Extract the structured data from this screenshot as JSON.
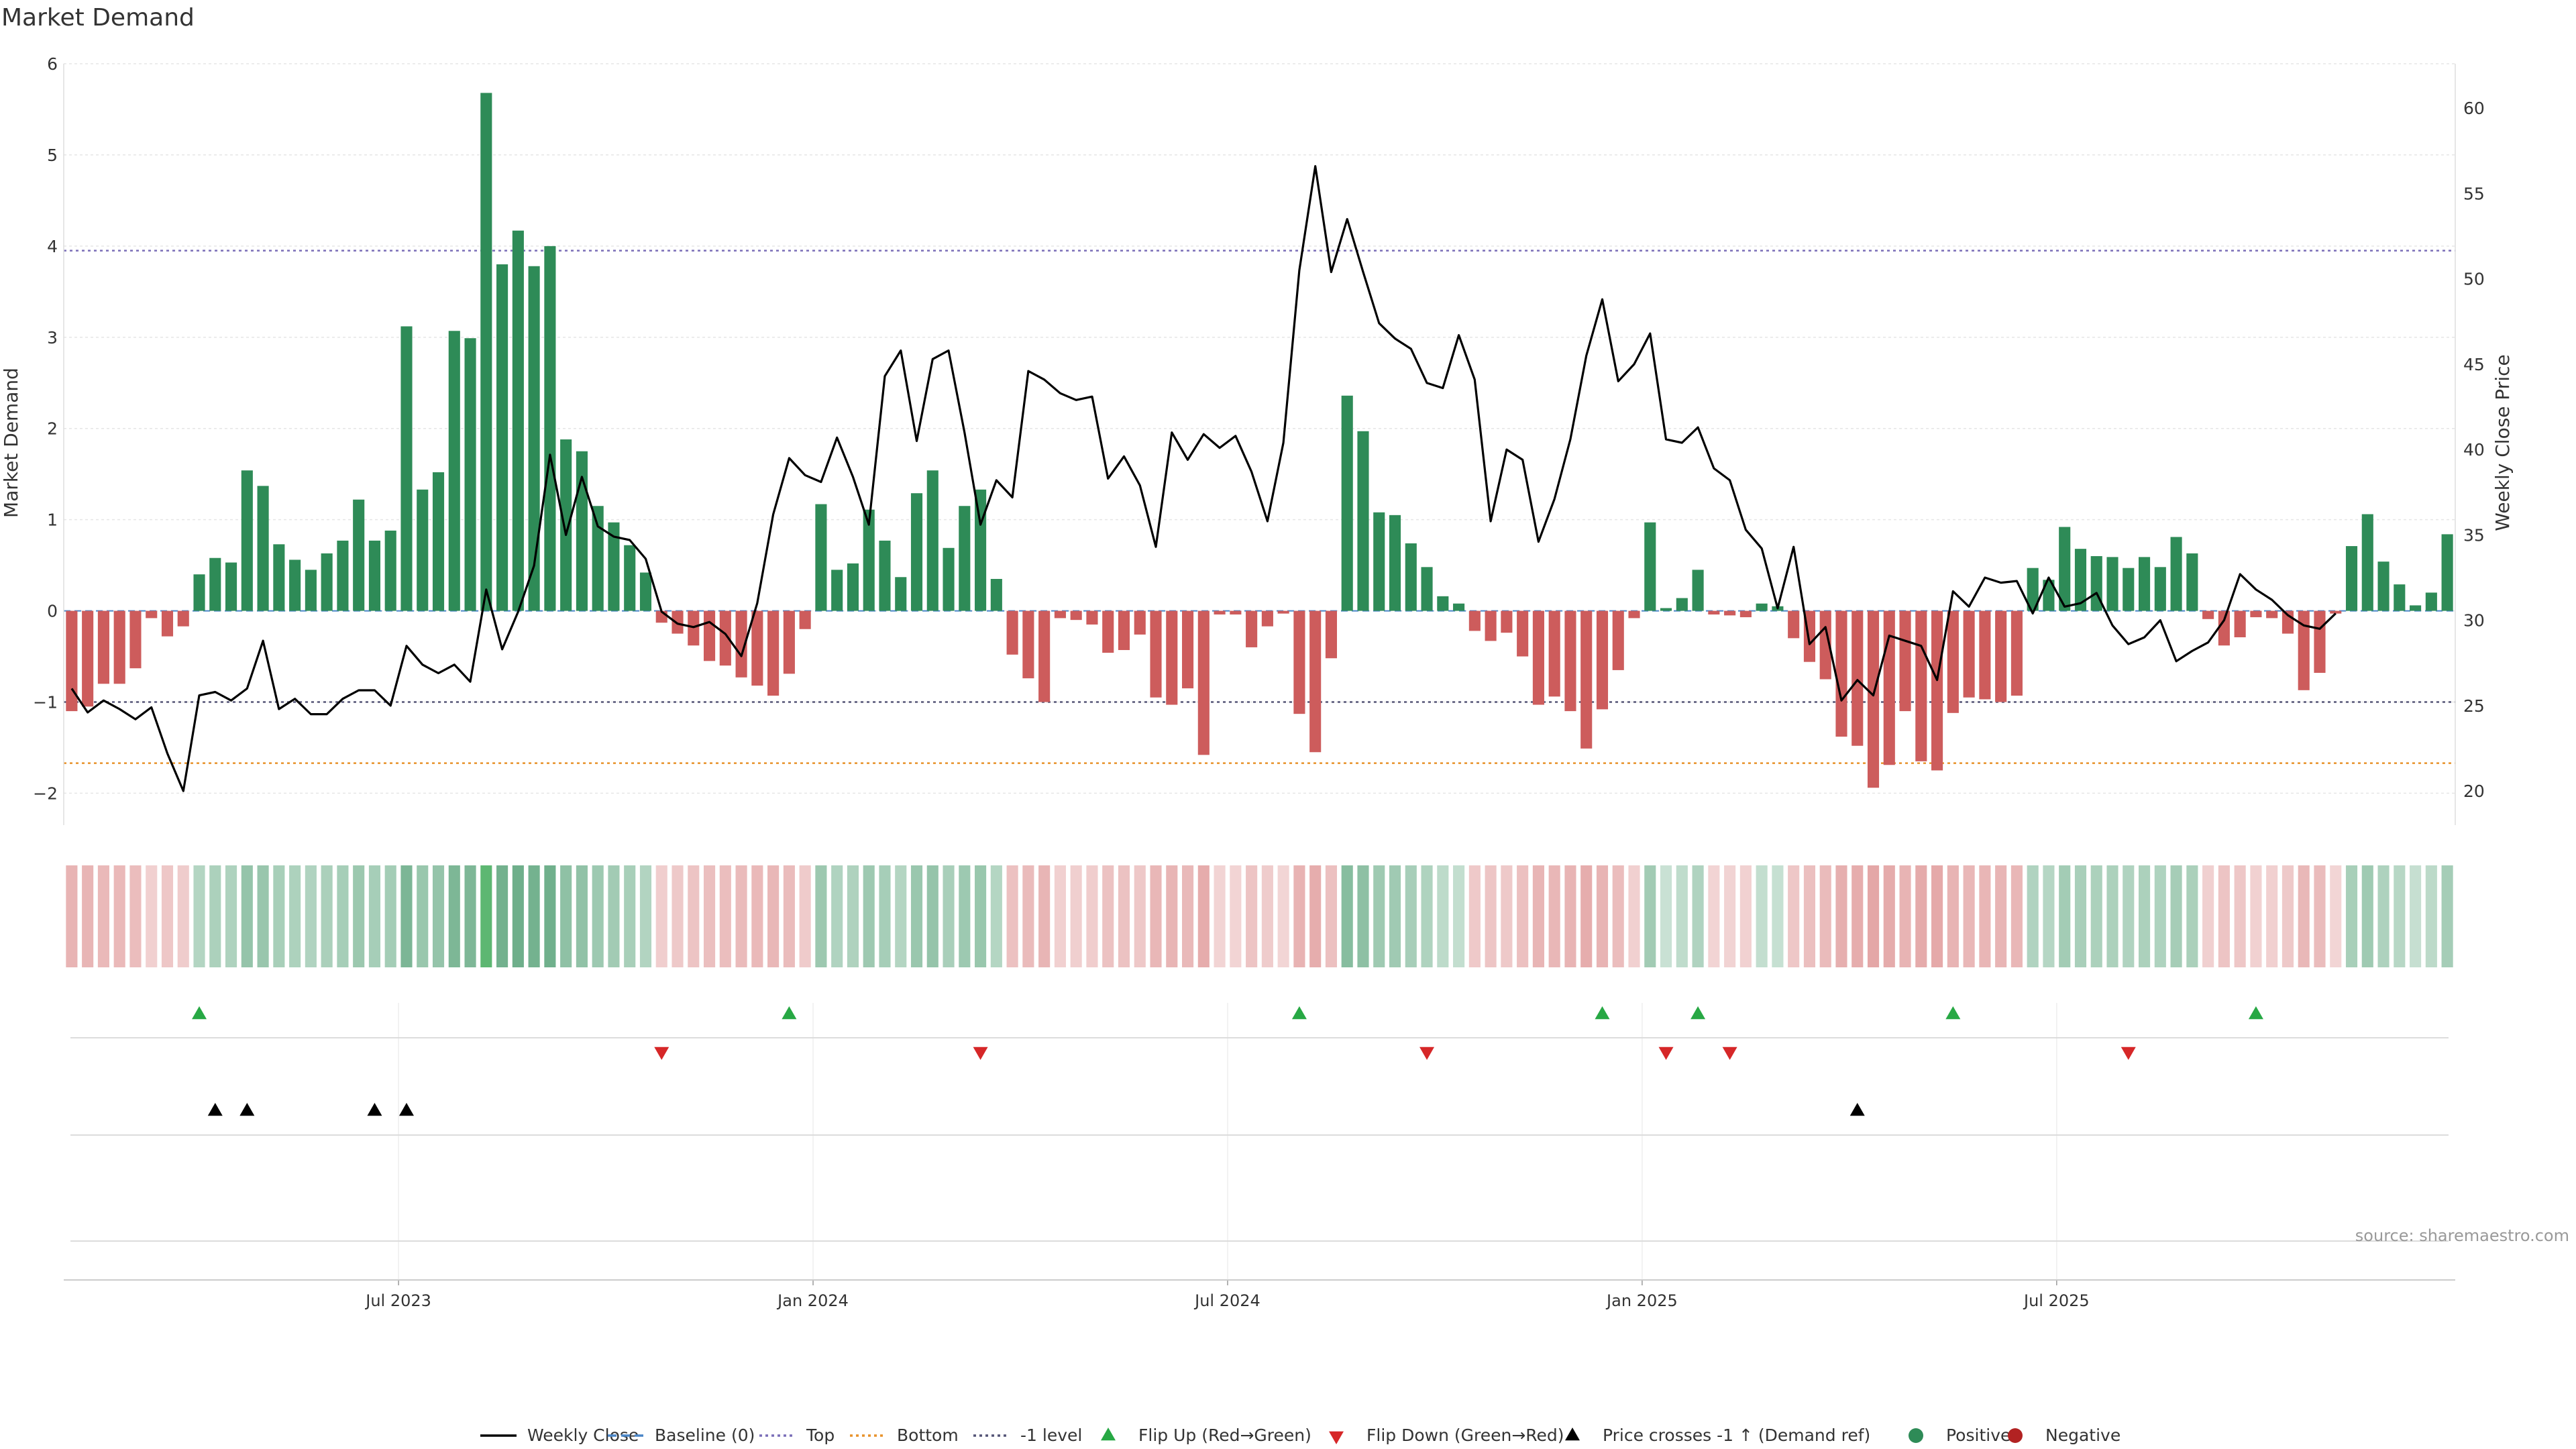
{
  "chart_data": {
    "type": "bar",
    "title": "Market Demand",
    "ylabel": "Market Demand",
    "y2label": "Weekly Close Price",
    "ylim": [
      -2.35,
      6.0
    ],
    "y2lim": [
      18.0,
      62.6
    ],
    "y_ticks": [
      6,
      5,
      4,
      3,
      2,
      1,
      0,
      -1,
      -2
    ],
    "y2_ticks": [
      60,
      55,
      50,
      45,
      40,
      35,
      30,
      25,
      20
    ],
    "x_ticks": [
      "Jul 2023",
      "Jan 2024",
      "Jul 2024",
      "Jan 2025",
      "Jul 2025"
    ],
    "x_tick_week_index": [
      21,
      47,
      73,
      99,
      125
    ],
    "reference_lines": [
      {
        "name": "Top",
        "value": 3.95,
        "color": "#7b6fb8"
      },
      {
        "name": "Bottom",
        "value": -1.67,
        "color": "#e8922b"
      },
      {
        "name": "-1 level",
        "value": -1.0,
        "color": "#555577"
      }
    ],
    "demand": [
      -1.1,
      -1.05,
      -0.8,
      -0.8,
      -0.63,
      -0.08,
      -0.28,
      -0.17,
      0.4,
      0.58,
      0.53,
      1.54,
      1.37,
      0.73,
      0.56,
      0.45,
      0.63,
      0.77,
      1.22,
      0.77,
      0.88,
      3.12,
      1.33,
      1.52,
      3.07,
      2.99,
      5.68,
      3.8,
      4.17,
      3.78,
      4.0,
      1.88,
      1.75,
      1.15,
      0.97,
      0.72,
      0.42,
      -0.13,
      -0.25,
      -0.38,
      -0.55,
      -0.6,
      -0.73,
      -0.82,
      -0.93,
      -0.69,
      -0.2,
      1.17,
      0.45,
      0.52,
      1.11,
      0.77,
      0.37,
      1.29,
      1.54,
      0.69,
      1.15,
      1.33,
      0.35,
      -0.48,
      -0.74,
      -1.0,
      -0.08,
      -0.1,
      -0.15,
      -0.46,
      -0.43,
      -0.26,
      -0.95,
      -1.03,
      -0.85,
      -1.58,
      -0.04,
      -0.04,
      -0.4,
      -0.17,
      -0.03,
      -1.13,
      -1.55,
      -0.52,
      2.36,
      1.97,
      1.08,
      1.05,
      0.74,
      0.48,
      0.16,
      0.08,
      -0.22,
      -0.33,
      -0.24,
      -0.5,
      -1.03,
      -0.94,
      -1.1,
      -1.51,
      -1.08,
      -0.65,
      -0.08,
      0.97,
      0.03,
      0.14,
      0.45,
      -0.04,
      -0.05,
      -0.07,
      0.08,
      0.05,
      -0.3,
      -0.56,
      -0.75,
      -1.38,
      -1.48,
      -1.94,
      -1.69,
      -1.1,
      -1.65,
      -1.75,
      -1.12,
      -0.95,
      -0.97,
      -1.0,
      -0.93,
      0.47,
      0.34,
      0.92,
      0.68,
      0.6,
      0.59,
      0.47,
      0.59,
      0.48,
      0.81,
      0.63,
      -0.09,
      -0.38,
      -0.29,
      -0.07,
      -0.08,
      -0.25,
      -0.87,
      -0.68,
      -0.03,
      0.71,
      1.06,
      0.54,
      0.29,
      0.06,
      0.2,
      0.84
    ],
    "weekly_close": [
      26.0,
      24.6,
      25.3,
      24.8,
      24.2,
      24.9,
      22.2,
      20.0,
      25.6,
      25.8,
      25.3,
      26.0,
      28.8,
      24.8,
      25.4,
      24.5,
      24.5,
      25.4,
      25.9,
      25.9,
      25.0,
      28.5,
      27.4,
      26.9,
      27.4,
      26.4,
      31.8,
      28.3,
      30.5,
      33.2,
      39.7,
      35.0,
      38.4,
      35.5,
      34.9,
      34.7,
      33.6,
      30.5,
      29.8,
      29.6,
      29.9,
      29.2,
      27.9,
      31.0,
      36.2,
      39.5,
      38.5,
      38.1,
      40.7,
      38.4,
      35.6,
      44.3,
      45.8,
      40.5,
      45.3,
      45.8,
      41.0,
      35.6,
      38.2,
      37.2,
      44.6,
      44.1,
      43.3,
      42.9,
      43.1,
      38.3,
      39.6,
      37.9,
      34.3,
      41.0,
      39.4,
      40.9,
      40.1,
      40.8,
      38.7,
      35.8,
      40.4,
      50.5,
      56.6,
      50.4,
      53.5,
      50.4,
      47.4,
      46.5,
      45.9,
      43.9,
      43.6,
      46.7,
      44.1,
      35.8,
      40.0,
      39.4,
      34.6,
      37.1,
      40.6,
      45.5,
      48.8,
      44.0,
      45.0,
      46.8,
      40.6,
      40.4,
      41.3,
      38.9,
      38.2,
      35.3,
      34.2,
      30.7,
      34.3,
      28.6,
      29.6,
      25.3,
      26.5,
      25.6,
      29.1,
      28.8,
      28.5,
      26.5,
      31.7,
      30.8,
      32.5,
      32.2,
      32.3,
      30.4,
      32.5,
      30.8,
      31.0,
      31.6,
      29.7,
      28.6,
      29.0,
      30.0,
      27.6,
      28.2,
      28.7,
      30.0,
      32.7,
      31.8,
      31.2,
      30.3,
      29.7,
      29.5,
      30.4
    ],
    "bars_colors": {
      "positive": "#2e8b57",
      "negative": "#cd5c5c"
    },
    "line_color": "#000000",
    "heat_strip": {
      "positive": "#2e8b57",
      "negative": "#cd5c5c",
      "strong_positive": "#2ca147"
    },
    "flip_up_week_index": [
      8,
      45,
      77,
      96,
      102,
      118,
      137
    ],
    "flip_down_week_index": [
      37,
      57,
      85,
      100,
      104,
      129
    ],
    "price_cross_week_index": [
      9,
      11,
      19,
      21,
      112
    ],
    "flip_up_color": "#27a844",
    "flip_down_color": "#d62728",
    "price_cross_color": "#000000",
    "legend": [
      {
        "label": "Weekly Close",
        "kind": "line",
        "color": "#000000"
      },
      {
        "label": "Baseline (0)",
        "kind": "dash",
        "color": "#4a86c8"
      },
      {
        "label": "Top",
        "kind": "dot",
        "color": "#7b6fb8"
      },
      {
        "label": "Bottom",
        "kind": "dot",
        "color": "#e8922b"
      },
      {
        "label": "-1 level",
        "kind": "dot",
        "color": "#555577"
      },
      {
        "label": "Flip Up (Red→Green)",
        "kind": "tri-up",
        "color": "#27a844"
      },
      {
        "label": "Flip Down (Green→Red)",
        "kind": "tri-down",
        "color": "#d62728"
      },
      {
        "label": "Price crosses -1 ↑ (Demand ref)",
        "kind": "tri-up",
        "color": "#000000"
      },
      {
        "label": "Positive",
        "kind": "circle",
        "color": "#2e8b57"
      },
      {
        "label": "Negative",
        "kind": "circle",
        "color": "#b22222"
      }
    ],
    "legend_placement": "bottom",
    "grid": true,
    "source": "source: sharemaestro.com"
  }
}
